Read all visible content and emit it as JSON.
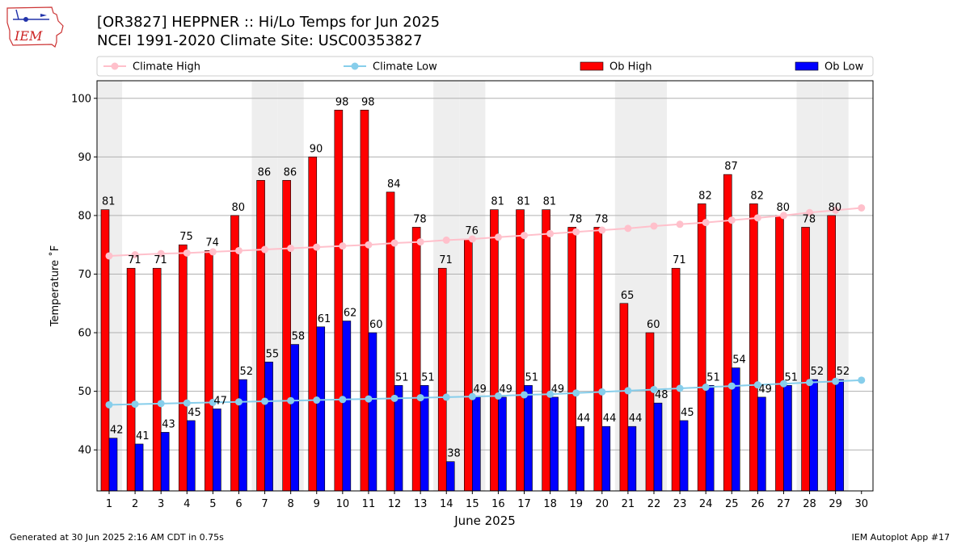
{
  "header": {
    "title_line1": "[OR3827] HEPPNER :: Hi/Lo Temps for Jun 2025",
    "title_line2": "NCEI 1991-2020 Climate Site: USC00353827",
    "logo_text": "IEM"
  },
  "footer": {
    "generated": "Generated at 30 Jun 2025 2:16 AM CDT in 0.75s",
    "app": "IEM Autoplot App #17"
  },
  "colors": {
    "ob_high": "#ff0000",
    "ob_low": "#0000ff",
    "climate_high": "#ffc0cb",
    "climate_low": "#87ceeb",
    "weekend_shade": "#eeeeee"
  },
  "chart_data": {
    "type": "bar",
    "xlabel": "June 2025",
    "ylabel": "Temperature $^\\circ$F",
    "ylabel_display": "Temperature ˚F",
    "ylim": [
      33,
      103
    ],
    "yticks": [
      40,
      50,
      60,
      70,
      80,
      90,
      100
    ],
    "grid": "horizontal",
    "legend_position": "top",
    "categories": [
      1,
      2,
      3,
      4,
      5,
      6,
      7,
      8,
      9,
      10,
      11,
      12,
      13,
      14,
      15,
      16,
      17,
      18,
      19,
      20,
      21,
      22,
      23,
      24,
      25,
      26,
      27,
      28,
      29,
      30
    ],
    "shaded_days": [
      1,
      7,
      8,
      14,
      15,
      21,
      22,
      28,
      29
    ],
    "series": [
      {
        "name": "Ob High",
        "kind": "bar",
        "color": "#ff0000",
        "values": [
          81,
          71,
          71,
          75,
          74,
          80,
          86,
          86,
          90,
          98,
          98,
          84,
          78,
          71,
          76,
          81,
          81,
          81,
          78,
          78,
          65,
          60,
          71,
          82,
          87,
          82,
          80,
          78,
          80,
          null
        ]
      },
      {
        "name": "Ob Low",
        "kind": "bar",
        "color": "#0000ff",
        "values": [
          42,
          41,
          43,
          45,
          47,
          52,
          55,
          58,
          61,
          62,
          60,
          51,
          51,
          38,
          49,
          49,
          51,
          49,
          44,
          44,
          44,
          48,
          45,
          51,
          54,
          49,
          51,
          52,
          52,
          null
        ]
      },
      {
        "name": "Climate High",
        "kind": "line",
        "color": "#ffc0cb",
        "values": [
          73.1,
          73.3,
          73.5,
          73.6,
          73.8,
          74.0,
          74.2,
          74.4,
          74.6,
          74.8,
          75.0,
          75.3,
          75.5,
          75.8,
          76.0,
          76.3,
          76.6,
          76.9,
          77.2,
          77.5,
          77.8,
          78.2,
          78.5,
          78.8,
          79.2,
          79.6,
          80.0,
          80.5,
          80.9,
          81.3
        ]
      },
      {
        "name": "Climate Low",
        "kind": "line",
        "color": "#87ceeb",
        "values": [
          47.7,
          47.8,
          47.9,
          48.0,
          48.1,
          48.2,
          48.3,
          48.4,
          48.5,
          48.6,
          48.7,
          48.8,
          48.9,
          49.0,
          49.1,
          49.2,
          49.4,
          49.5,
          49.7,
          49.9,
          50.1,
          50.3,
          50.5,
          50.7,
          50.9,
          51.1,
          51.3,
          51.5,
          51.7,
          51.9
        ]
      }
    ]
  }
}
